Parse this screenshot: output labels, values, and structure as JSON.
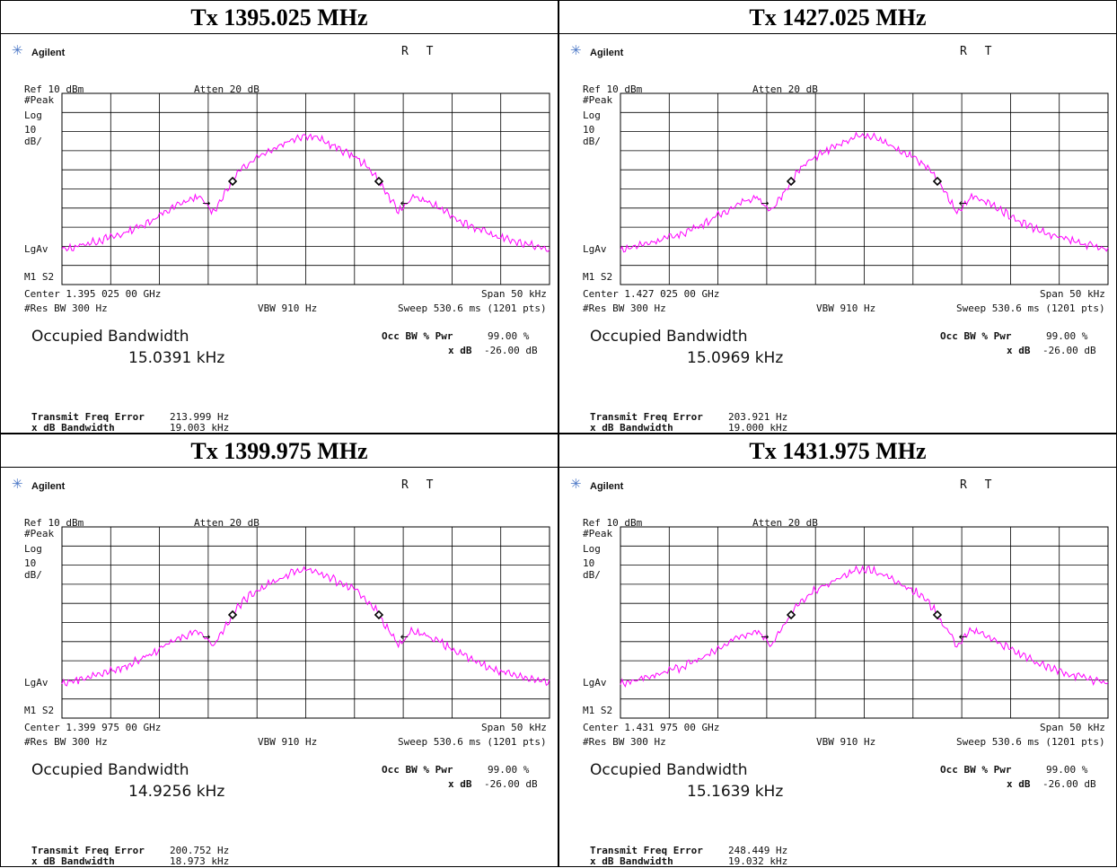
{
  "common": {
    "brand": "Agilent",
    "rt": "R T",
    "ref": "Ref 10 dBm",
    "atten": "Atten 20 dB",
    "peak": "#Peak",
    "log": "Log",
    "scale_num": "10",
    "scale_unit": "dB/",
    "lgav": "LgAv",
    "m1s2": "M1 S2",
    "span": "Span 50 kHz",
    "res_bw": "#Res BW 300 Hz",
    "vbw": "VBW 910 Hz",
    "sweep": "Sweep 530.6 ms (1201 pts)",
    "occ_title": "Occupied Bandwidth",
    "occ_pwr_label": "Occ BW % Pwr",
    "occ_pwr_value": "99.00 %",
    "xdb_label": "x dB",
    "xdb_value": "-26.00 dB",
    "tfe_label": "Transmit Freq Error",
    "xdbbw_label": "x dB Bandwidth",
    "trace_color": "#ff00ff",
    "grid_color": "#000000"
  },
  "chart_data": [
    {
      "type": "line",
      "title": "Tx 1395.025 MHz",
      "center": "Center 1.395 025 00 GHz",
      "occ_bw": "15.0391 kHz",
      "transmit_freq_error": "213.999 Hz",
      "xdb_bandwidth": "19.003 kHz",
      "xlim": [
        -25,
        25
      ],
      "ylim": [
        -90,
        10
      ],
      "x": [
        -25,
        -22,
        -19,
        -16,
        -13,
        -11,
        -9.5,
        -8,
        -7,
        -6,
        -5,
        -3,
        -1,
        0,
        1,
        3,
        5,
        6,
        7,
        8,
        9.5,
        11,
        13,
        16,
        19,
        22,
        25
      ],
      "values": [
        -72,
        -68,
        -64,
        -57,
        -48,
        -44,
        -52,
        -40,
        -32,
        -27,
        -23,
        -18,
        -13,
        -12,
        -13,
        -18,
        -23,
        -27,
        -32,
        -40,
        -52,
        -44,
        -48,
        -57,
        -64,
        -68,
        -72
      ]
    },
    {
      "type": "line",
      "title": "Tx 1427.025 MHz",
      "center": "Center 1.427 025 00 GHz",
      "occ_bw": "15.0969 kHz",
      "transmit_freq_error": "203.921 Hz",
      "xdb_bandwidth": "19.000 kHz",
      "xlim": [
        -25,
        25
      ],
      "ylim": [
        -90,
        10
      ],
      "x": [
        -25,
        -22,
        -19,
        -16,
        -13,
        -11,
        -9.5,
        -8,
        -7,
        -6,
        -5,
        -3,
        -1,
        0,
        1,
        3,
        5,
        6,
        7,
        8,
        9.5,
        11,
        13,
        16,
        19,
        22,
        25
      ],
      "values": [
        -72,
        -68,
        -64,
        -57,
        -48,
        -44,
        -52,
        -40,
        -32,
        -27,
        -23,
        -18,
        -13,
        -12,
        -13,
        -18,
        -23,
        -27,
        -32,
        -40,
        -52,
        -44,
        -48,
        -57,
        -64,
        -68,
        -72
      ]
    },
    {
      "type": "line",
      "title": "Tx 1399.975 MHz",
      "center": "Center 1.399 975 00 GHz",
      "occ_bw": "14.9256 kHz",
      "transmit_freq_error": "200.752 Hz",
      "xdb_bandwidth": "18.973 kHz",
      "xlim": [
        -25,
        25
      ],
      "ylim": [
        -90,
        10
      ],
      "x": [
        -25,
        -22,
        -19,
        -16,
        -13,
        -11,
        -9.5,
        -8,
        -7,
        -6,
        -5,
        -3,
        -1,
        0,
        1,
        3,
        5,
        6,
        7,
        8,
        9.5,
        11,
        13,
        16,
        19,
        22,
        25
      ],
      "values": [
        -72,
        -68,
        -64,
        -57,
        -48,
        -44,
        -52,
        -40,
        -32,
        -27,
        -23,
        -18,
        -13,
        -12,
        -13,
        -18,
        -23,
        -27,
        -32,
        -40,
        -52,
        -44,
        -48,
        -57,
        -64,
        -68,
        -72
      ]
    },
    {
      "type": "line",
      "title": "Tx 1431.975 MHz",
      "center": "Center 1.431 975 00 GHz",
      "occ_bw": "15.1639 kHz",
      "transmit_freq_error": "248.449 Hz",
      "xdb_bandwidth": "19.032 kHz",
      "xlim": [
        -25,
        25
      ],
      "ylim": [
        -90,
        10
      ],
      "x": [
        -25,
        -22,
        -19,
        -16,
        -13,
        -11,
        -9.5,
        -8,
        -7,
        -6,
        -5,
        -3,
        -1,
        0,
        1,
        3,
        5,
        6,
        7,
        8,
        9.5,
        11,
        13,
        16,
        19,
        22,
        25
      ],
      "values": [
        -72,
        -68,
        -64,
        -57,
        -48,
        -44,
        -52,
        -40,
        -32,
        -27,
        -23,
        -18,
        -13,
        -12,
        -13,
        -18,
        -23,
        -27,
        -32,
        -40,
        -52,
        -44,
        -48,
        -57,
        -64,
        -68,
        -72
      ]
    }
  ]
}
